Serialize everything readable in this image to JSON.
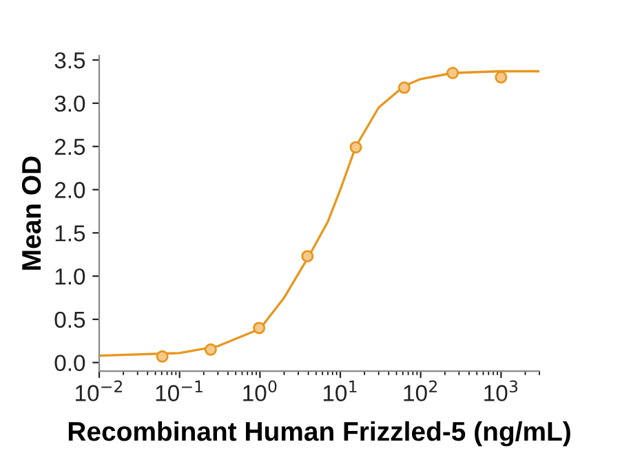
{
  "chart_data": {
    "type": "scatter",
    "xlabel": "Recombinant Human Frizzled-5 (ng/mL)",
    "ylabel": "Mean OD",
    "log": "x",
    "xlim": [
      0.01,
      3000
    ],
    "ylim": [
      -0.1,
      3.55
    ],
    "xticks": [
      {
        "value": 0.01,
        "label": "10$^{−2}$"
      },
      {
        "value": 0.1,
        "label": "10$^{−1}$"
      },
      {
        "value": 1,
        "label": "10$^{0}$"
      },
      {
        "value": 10,
        "label": "10$^{1}$"
      },
      {
        "value": 100,
        "label": "10$^{2}$"
      },
      {
        "value": 1000,
        "label": "10$^{3}$"
      }
    ],
    "yticks": [
      {
        "value": 0,
        "label": "0.0"
      },
      {
        "value": 0.5,
        "label": "0.5"
      },
      {
        "value": 1,
        "label": "1.0"
      },
      {
        "value": 1.5,
        "label": "1.5"
      },
      {
        "value": 2,
        "label": "2.0"
      },
      {
        "value": 2.5,
        "label": "2.5"
      },
      {
        "value": 3,
        "label": "3.0"
      },
      {
        "value": 3.5,
        "label": "3.5"
      }
    ],
    "grid": false,
    "legend": false,
    "series": [
      {
        "type": "line",
        "color": "#e8961e",
        "marker": "none",
        "line_style": "solid",
        "x": [
          0.01,
          0.1,
          0.3,
          1,
          2,
          4,
          7,
          10,
          15.6,
          30,
          62.5,
          100,
          250,
          1000,
          3000
        ],
        "values": [
          0.08,
          0.11,
          0.19,
          0.39,
          0.75,
          1.22,
          1.63,
          2.0,
          2.5,
          2.95,
          3.2,
          3.28,
          3.35,
          3.37,
          3.37
        ]
      },
      {
        "color": "#e8961e",
        "marker": "circle",
        "x": [
          0.061,
          0.244,
          0.977,
          3.9,
          15.6,
          62.5,
          250,
          1000
        ],
        "values": [
          0.07,
          0.15,
          0.4,
          1.23,
          2.49,
          3.18,
          3.35,
          3.3
        ]
      }
    ]
  }
}
